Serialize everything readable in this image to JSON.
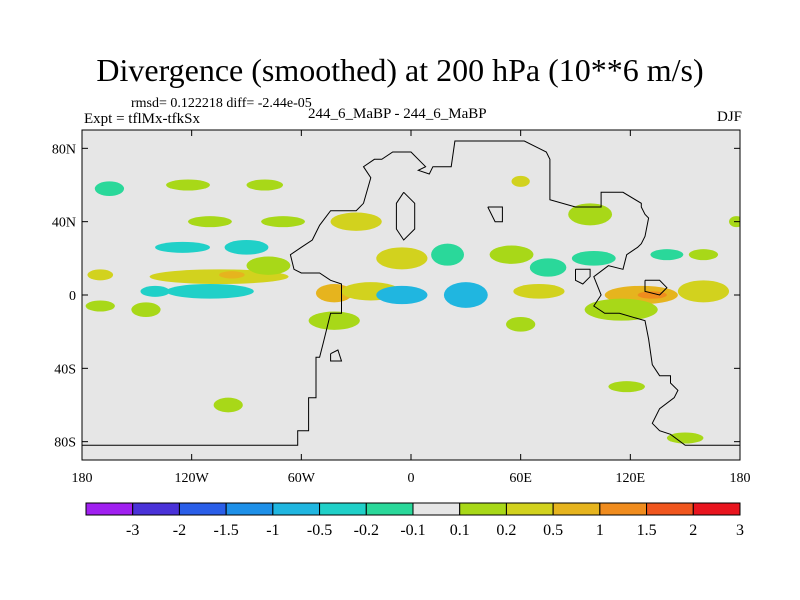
{
  "chart_data": {
    "type": "heatmap",
    "title": "Divergence (smoothed) at 200 hPa (10**6 m/s)",
    "stats": "rmsd= 0.122218 diff= -2.44e-05",
    "left_label": "Expt = tflMx-tfkSx",
    "center_label": "244_6_MaBP - 244_6_MaBP",
    "right_label": "DJF",
    "xlabel": "",
    "ylabel": "",
    "x_ticks": [
      {
        "value": -180,
        "label": "180"
      },
      {
        "value": -120,
        "label": "120W"
      },
      {
        "value": -60,
        "label": "60W"
      },
      {
        "value": 0,
        "label": "0"
      },
      {
        "value": 60,
        "label": "60E"
      },
      {
        "value": 120,
        "label": "120E"
      },
      {
        "value": 180,
        "label": "180"
      }
    ],
    "y_ticks": [
      {
        "value": 80,
        "label": "80N"
      },
      {
        "value": 40,
        "label": "40N"
      },
      {
        "value": 0,
        "label": "0"
      },
      {
        "value": -40,
        "label": "40S"
      },
      {
        "value": -80,
        "label": "80S"
      }
    ],
    "xlim": [
      -180,
      180
    ],
    "ylim": [
      -90,
      90
    ],
    "background_color": "#e6e6e6",
    "colorbar": {
      "labels": [
        "-3",
        "-2",
        "-1.5",
        "-1",
        "-0.5",
        "-0.2",
        "-0.1",
        "0.1",
        "0.2",
        "0.5",
        "1",
        "1.5",
        "2",
        "3"
      ],
      "colors": [
        "#a020f0",
        "#4a32d8",
        "#2a5ee8",
        "#1e90e8",
        "#20b6e0",
        "#20d0c8",
        "#2ad89a",
        "#e6e6e6",
        "#a8d818",
        "#d2d21e",
        "#e6b41e",
        "#f08c1e",
        "#f0561e",
        "#e8141e"
      ]
    },
    "contours": [
      {
        "lon": 126,
        "lat": 0,
        "rlon": 20,
        "rlat": 5,
        "value": 0.5
      },
      {
        "lon": 132,
        "lat": 0,
        "rlon": 8,
        "rlat": 2,
        "value": 1
      },
      {
        "lon": 160,
        "lat": 2,
        "rlon": 14,
        "rlat": 6,
        "value": 0.2
      },
      {
        "lon": 115,
        "lat": -8,
        "rlon": 20,
        "rlat": 6,
        "value": 0.1
      },
      {
        "lon": -105,
        "lat": 10,
        "rlon": 38,
        "rlat": 4,
        "value": 0.2
      },
      {
        "lon": -98,
        "lat": 11,
        "rlon": 7,
        "rlat": 2,
        "value": 0.5
      },
      {
        "lon": -110,
        "lat": 2,
        "rlon": 24,
        "rlat": 4,
        "value": -0.2
      },
      {
        "lon": -78,
        "lat": 16,
        "rlon": 12,
        "rlat": 5,
        "value": 0.1
      },
      {
        "lon": -140,
        "lat": 2,
        "rlon": 8,
        "rlat": 3,
        "value": -0.2
      },
      {
        "lon": -170,
        "lat": 11,
        "rlon": 7,
        "rlat": 3,
        "value": 0.2
      },
      {
        "lon": -170,
        "lat": -6,
        "rlon": 8,
        "rlat": 3,
        "value": 0.1
      },
      {
        "lon": -145,
        "lat": -8,
        "rlon": 8,
        "rlat": 4,
        "value": 0.1
      },
      {
        "lon": -125,
        "lat": 26,
        "rlon": 15,
        "rlat": 3,
        "value": -0.2
      },
      {
        "lon": -90,
        "lat": 26,
        "rlon": 12,
        "rlat": 4,
        "value": -0.2
      },
      {
        "lon": -110,
        "lat": 40,
        "rlon": 12,
        "rlat": 3,
        "value": 0.1
      },
      {
        "lon": -70,
        "lat": 40,
        "rlon": 12,
        "rlat": 3,
        "value": 0.1
      },
      {
        "lon": -30,
        "lat": 40,
        "rlon": 14,
        "rlat": 5,
        "value": 0.2
      },
      {
        "lon": -165,
        "lat": 58,
        "rlon": 8,
        "rlat": 4,
        "value": -0.1
      },
      {
        "lon": -122,
        "lat": 60,
        "rlon": 12,
        "rlat": 3,
        "value": 0.1
      },
      {
        "lon": -80,
        "lat": 60,
        "rlon": 10,
        "rlat": 3,
        "value": 0.1
      },
      {
        "lon": -42,
        "lat": 1,
        "rlon": 10,
        "rlat": 5,
        "value": 0.5
      },
      {
        "lon": -42,
        "lat": -14,
        "rlon": 14,
        "rlat": 5,
        "value": 0.1
      },
      {
        "lon": -22,
        "lat": 2,
        "rlon": 16,
        "rlat": 5,
        "value": 0.2
      },
      {
        "lon": -5,
        "lat": 0,
        "rlon": 14,
        "rlat": 5,
        "value": -0.5
      },
      {
        "lon": -5,
        "lat": 20,
        "rlon": 14,
        "rlat": 6,
        "value": 0.2
      },
      {
        "lon": 20,
        "lat": 22,
        "rlon": 9,
        "rlat": 6,
        "value": -0.1
      },
      {
        "lon": 30,
        "lat": 0,
        "rlon": 12,
        "rlat": 7,
        "value": -0.5
      },
      {
        "lon": 55,
        "lat": 22,
        "rlon": 12,
        "rlat": 5,
        "value": 0.1
      },
      {
        "lon": 70,
        "lat": 2,
        "rlon": 14,
        "rlat": 4,
        "value": 0.2
      },
      {
        "lon": 75,
        "lat": 15,
        "rlon": 10,
        "rlat": 5,
        "value": -0.1
      },
      {
        "lon": 100,
        "lat": 20,
        "rlon": 12,
        "rlat": 4,
        "value": -0.1
      },
      {
        "lon": 98,
        "lat": 44,
        "rlon": 12,
        "rlat": 6,
        "value": 0.1
      },
      {
        "lon": 60,
        "lat": 62,
        "rlon": 5,
        "rlat": 3,
        "value": 0.2
      },
      {
        "lon": 140,
        "lat": 22,
        "rlon": 9,
        "rlat": 3,
        "value": -0.1
      },
      {
        "lon": 160,
        "lat": 22,
        "rlon": 8,
        "rlat": 3,
        "value": 0.1
      },
      {
        "lon": 60,
        "lat": -16,
        "rlon": 8,
        "rlat": 4,
        "value": 0.1
      },
      {
        "lon": 118,
        "lat": -50,
        "rlon": 10,
        "rlat": 3,
        "value": 0.1
      },
      {
        "lon": 150,
        "lat": -78,
        "rlon": 10,
        "rlat": 3,
        "value": 0.1
      },
      {
        "lon": -100,
        "lat": -60,
        "rlon": 8,
        "rlat": 4,
        "value": 0.1
      },
      {
        "lon": 178,
        "lat": 40,
        "rlon": 4,
        "rlat": 3,
        "value": 0.1
      }
    ],
    "coastline_lonlat": [
      [
        -180,
        -82
      ],
      [
        -62,
        -82
      ],
      [
        -62,
        -74
      ],
      [
        -56,
        -74
      ],
      [
        -56,
        -56
      ],
      [
        -52,
        -56
      ],
      [
        -52,
        -34
      ],
      [
        -50,
        -34
      ],
      [
        -48,
        -26
      ],
      [
        -44,
        -10
      ],
      [
        -38,
        -10
      ],
      [
        -38,
        6
      ],
      [
        -44,
        8
      ],
      [
        -50,
        12
      ],
      [
        -60,
        12
      ],
      [
        -64,
        14
      ],
      [
        -66,
        22
      ],
      [
        -60,
        26
      ],
      [
        -54,
        30
      ],
      [
        -50,
        38
      ],
      [
        -44,
        46
      ],
      [
        -30,
        46
      ],
      [
        -26,
        50
      ],
      [
        -22,
        64
      ],
      [
        -26,
        70
      ],
      [
        -20,
        74
      ],
      [
        -16,
        74
      ],
      [
        -10,
        78
      ],
      [
        0,
        78
      ],
      [
        8,
        70
      ],
      [
        4,
        68
      ],
      [
        10,
        66
      ],
      [
        12,
        70
      ],
      [
        22,
        70
      ],
      [
        24,
        84
      ],
      [
        62,
        84
      ],
      [
        70,
        80
      ],
      [
        74,
        78
      ],
      [
        76,
        74
      ],
      [
        76,
        52
      ],
      [
        90,
        48
      ],
      [
        104,
        48
      ],
      [
        104,
        56
      ],
      [
        116,
        56
      ],
      [
        126,
        50
      ],
      [
        126,
        48
      ],
      [
        128,
        44
      ],
      [
        130,
        42
      ],
      [
        128,
        32
      ],
      [
        126,
        28
      ],
      [
        124,
        26
      ],
      [
        118,
        22
      ],
      [
        116,
        14
      ],
      [
        108,
        16
      ],
      [
        100,
        10
      ],
      [
        104,
        0
      ],
      [
        100,
        -6
      ],
      [
        106,
        -10
      ],
      [
        114,
        -10
      ],
      [
        128,
        -14
      ],
      [
        130,
        -24
      ],
      [
        132,
        -38
      ],
      [
        136,
        -44
      ],
      [
        142,
        -44
      ],
      [
        142,
        -48
      ],
      [
        146,
        -52
      ],
      [
        144,
        -56
      ],
      [
        136,
        -62
      ],
      [
        132,
        -70
      ],
      [
        136,
        -74
      ],
      [
        142,
        -76
      ],
      [
        150,
        -82
      ],
      [
        180,
        -82
      ]
    ],
    "coastline_closed": [
      [
        [
          -4,
          56
        ],
        [
          2,
          50
        ],
        [
          2,
          36
        ],
        [
          -4,
          30
        ],
        [
          -8,
          36
        ],
        [
          -8,
          50
        ],
        [
          -4,
          56
        ]
      ],
      [
        [
          42,
          48
        ],
        [
          46,
          40
        ],
        [
          50,
          40
        ],
        [
          50,
          48
        ],
        [
          42,
          48
        ]
      ],
      [
        [
          90,
          14
        ],
        [
          98,
          14
        ],
        [
          98,
          10
        ],
        [
          94,
          6
        ],
        [
          90,
          8
        ],
        [
          90,
          14
        ]
      ],
      [
        [
          -44,
          -32
        ],
        [
          -40,
          -30
        ],
        [
          -38,
          -36
        ],
        [
          -44,
          -36
        ],
        [
          -44,
          -32
        ]
      ],
      [
        [
          128,
          8
        ],
        [
          136,
          8
        ],
        [
          140,
          4
        ],
        [
          136,
          0
        ],
        [
          128,
          2
        ],
        [
          128,
          8
        ]
      ]
    ]
  }
}
